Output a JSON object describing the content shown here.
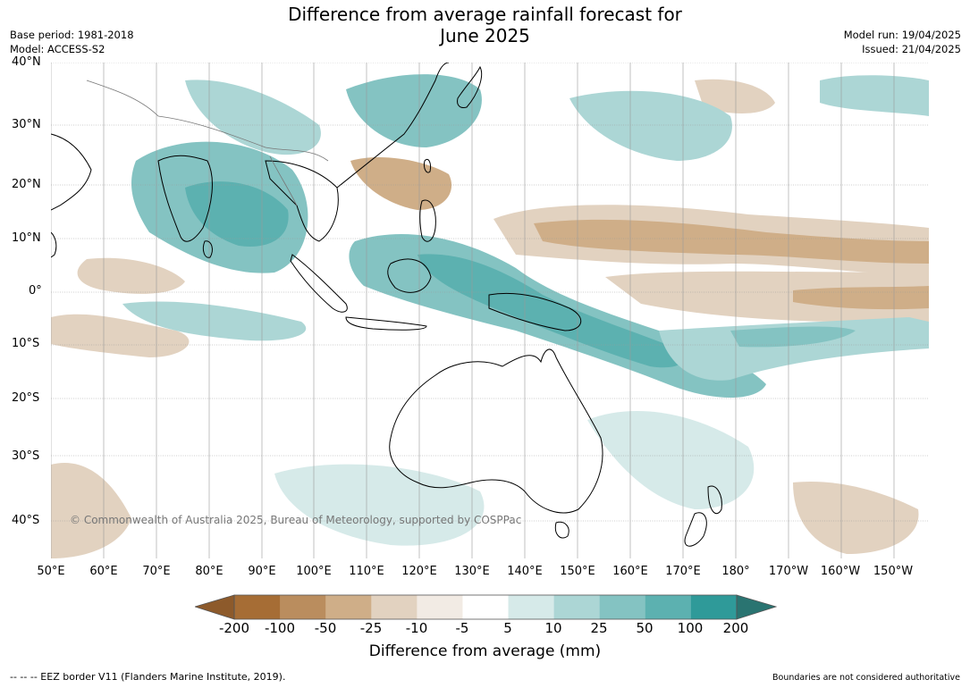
{
  "title_line1": "Difference from average rainfall forecast for",
  "title_line2": "June 2025",
  "base_period": "Base period: 1981-2018",
  "model": "Model: ACCESS-S2",
  "model_run": "Model run: 19/04/2025",
  "issued": "Issued: 21/04/2025",
  "lat_labels": [
    "40°N",
    "30°N",
    "20°N",
    "10°N",
    "0°",
    "10°S",
    "20°S",
    "30°S",
    "40°S"
  ],
  "lon_labels": [
    "50°E",
    "60°E",
    "70°E",
    "80°E",
    "90°E",
    "100°E",
    "110°E",
    "120°E",
    "130°E",
    "140°E",
    "150°E",
    "160°E",
    "170°E",
    "180°",
    "170°W",
    "160°W",
    "150°W"
  ],
  "copyright": "© Commonwealth of Australia 2025, Bureau of Meteorology, supported by COSPPac",
  "colorbar": {
    "ticks": [
      "-200",
      "-100",
      "-50",
      "-25",
      "-10",
      "-5",
      "5",
      "10",
      "25",
      "50",
      "100",
      "200"
    ],
    "colors": [
      "#a66d35",
      "#ba8d5e",
      "#cfae88",
      "#e2d2c0",
      "#f2ebe4",
      "#ffffff",
      "#d6eae9",
      "#acd6d5",
      "#84c3c2",
      "#5cb1b0",
      "#2f9a99"
    ],
    "under_color": "#8d5a2b",
    "over_color": "#2a7471",
    "label": "Difference from average (mm)"
  },
  "footer_left": "--  --  -- EEZ border V11 (Flanders Marine Institute, 2019).",
  "footer_right": "Boundaries are not considered authoritative",
  "colors": {
    "wet": "#5cb1b0",
    "wet_strong": "#2f9a99",
    "dry": "#cfae88",
    "dry_strong": "#ba8d5e",
    "land_outline": "#000000",
    "grid": "#999999"
  }
}
